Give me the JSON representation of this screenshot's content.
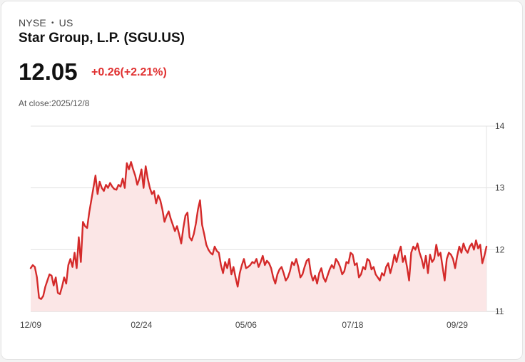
{
  "header": {
    "exchange": "NYSE",
    "region": "US",
    "title": "Star Group, L.P. (SGU.US)",
    "price": "12.05",
    "change": "+0.26(+2.21%)",
    "close_label": "At close:",
    "close_date": "2025/12/8"
  },
  "colors": {
    "line": "#d42a2a",
    "fill": "#fbe6e6",
    "positive": "#e03131",
    "grid": "#e3e3e3"
  },
  "chart_data": {
    "type": "area",
    "ylim": [
      11,
      14
    ],
    "yticks": [
      14,
      13,
      12,
      11
    ],
    "xticks": [
      "12/09",
      "02/24",
      "05/06",
      "07/18",
      "09/29"
    ],
    "xtick_index": [
      0,
      53,
      103,
      154,
      204
    ],
    "grid": true,
    "values": [
      11.7,
      11.75,
      11.72,
      11.55,
      11.22,
      11.2,
      11.25,
      11.4,
      11.5,
      11.6,
      11.58,
      11.42,
      11.55,
      11.3,
      11.28,
      11.4,
      11.55,
      11.45,
      11.75,
      11.85,
      11.72,
      11.95,
      11.7,
      12.2,
      11.8,
      12.45,
      12.38,
      12.35,
      12.6,
      12.8,
      13.0,
      13.2,
      12.9,
      13.1,
      13.0,
      12.95,
      13.05,
      13.0,
      13.08,
      13.02,
      12.98,
      12.97,
      13.05,
      13.02,
      13.15,
      13.0,
      13.4,
      13.3,
      13.42,
      13.3,
      13.2,
      13.05,
      13.15,
      13.3,
      13.0,
      13.35,
      13.15,
      13.0,
      12.9,
      12.95,
      12.75,
      12.88,
      12.8,
      12.65,
      12.45,
      12.55,
      12.62,
      12.5,
      12.4,
      12.3,
      12.38,
      12.25,
      12.1,
      12.35,
      12.55,
      12.6,
      12.2,
      12.15,
      12.25,
      12.42,
      12.65,
      12.8,
      12.4,
      12.25,
      12.08,
      12.0,
      11.95,
      11.92,
      12.05,
      11.98,
      11.95,
      11.75,
      11.62,
      11.8,
      11.7,
      11.85,
      11.6,
      11.72,
      11.55,
      11.4,
      11.62,
      11.75,
      11.85,
      11.7,
      11.72,
      11.75,
      11.8,
      11.78,
      11.85,
      11.72,
      11.8,
      11.9,
      11.75,
      11.82,
      11.78,
      11.7,
      11.55,
      11.45,
      11.6,
      11.68,
      11.72,
      11.62,
      11.5,
      11.55,
      11.65,
      11.8,
      11.75,
      11.85,
      11.72,
      11.55,
      11.6,
      11.72,
      11.82,
      11.85,
      11.62,
      11.5,
      11.58,
      11.45,
      11.62,
      11.7,
      11.55,
      11.48,
      11.58,
      11.68,
      11.75,
      11.7,
      11.85,
      11.8,
      11.72,
      11.6,
      11.65,
      11.8,
      11.78,
      11.95,
      11.92,
      11.75,
      11.78,
      11.55,
      11.6,
      11.72,
      11.68,
      11.85,
      11.82,
      11.68,
      11.72,
      11.6,
      11.55,
      11.5,
      11.62,
      11.58,
      11.72,
      11.78,
      11.62,
      11.75,
      11.92,
      11.8,
      11.95,
      12.05,
      11.8,
      11.9,
      11.72,
      11.5,
      11.95,
      12.05,
      12.0,
      12.1,
      11.95,
      11.85,
      11.7,
      11.9,
      11.62,
      11.92,
      11.8,
      11.85,
      12.08,
      11.9,
      11.95,
      11.72,
      11.5,
      11.85,
      11.95,
      11.92,
      11.85,
      11.7,
      11.9,
      12.05,
      11.95,
      12.1,
      12.0,
      11.95,
      12.05,
      12.1,
      12.0,
      12.15,
      12.02,
      12.08,
      11.78,
      11.9,
      12.05
    ]
  }
}
